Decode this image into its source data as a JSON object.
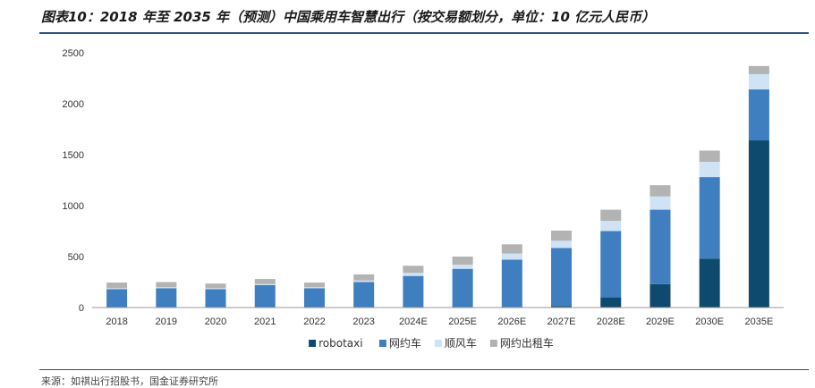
{
  "header": {
    "title": "图表10：2018 年至 2035 年（预测）中国乘用车智慧出行（按交易额划分，单位：10 亿元人民币）"
  },
  "footer": {
    "source": "来源：如祺出行招股书，国金证券研究所"
  },
  "colors": {
    "robotaxi": "#0e4a6e",
    "ride_hailing": "#3f7fbf",
    "carpooling": "#cfe3f5",
    "online_taxi": "#b3b3b3",
    "rule": "#2a4f7a",
    "axis": "#999999"
  },
  "chart_data": {
    "type": "bar",
    "stacked": true,
    "title": "",
    "xlabel": "",
    "ylabel": "",
    "ylim": [
      0,
      2500
    ],
    "yticks": [
      0,
      500,
      1000,
      1500,
      2000,
      2500
    ],
    "categories": [
      "2018",
      "2019",
      "2020",
      "2021",
      "2022",
      "2023",
      "2024E",
      "2025E",
      "2026E",
      "2027E",
      "2028E",
      "2029E",
      "2030E",
      "2035E"
    ],
    "series": [
      {
        "name": "robotaxi",
        "values": [
          0,
          0,
          0,
          0,
          0,
          0,
          0,
          0,
          0,
          15,
          100,
          230,
          480,
          1640
        ]
      },
      {
        "name": "网约车",
        "values": [
          180,
          190,
          180,
          220,
          190,
          250,
          310,
          380,
          470,
          570,
          650,
          730,
          800,
          500
        ]
      },
      {
        "name": "顺风车",
        "values": [
          10,
          10,
          10,
          10,
          10,
          15,
          30,
          40,
          60,
          70,
          100,
          130,
          150,
          150
        ]
      },
      {
        "name": "网约出租车",
        "values": [
          55,
          50,
          45,
          50,
          45,
          60,
          70,
          80,
          90,
          100,
          110,
          110,
          110,
          80
        ]
      }
    ],
    "legend_position": "bottom",
    "grid": false
  }
}
